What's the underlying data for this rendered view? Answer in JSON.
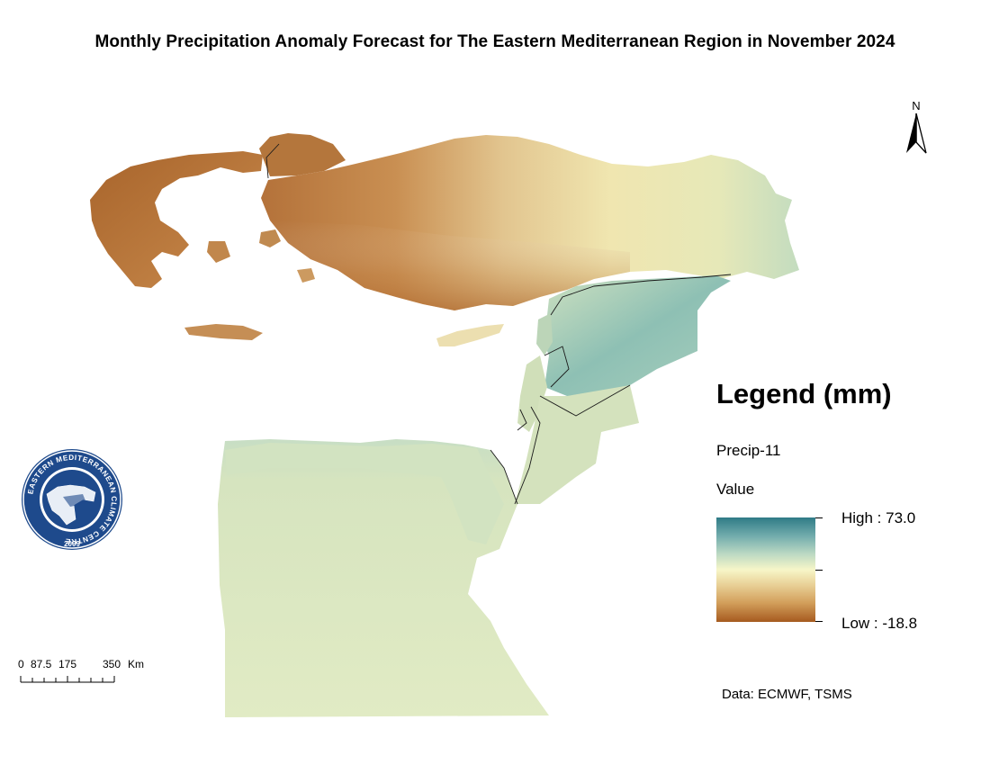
{
  "title": "Monthly Precipitation Anomaly Forecast for The Eastern Mediterranean Region in November 2024",
  "north_arrow": {
    "label": "N",
    "icon": "north-arrow-icon"
  },
  "legend": {
    "heading": "Legend (mm)",
    "layer": "Precip-11",
    "field": "Value",
    "high_label": "High : 73.0",
    "low_label": "Low : -18.8",
    "high_value": 73.0,
    "low_value": -18.8,
    "colors": [
      "#2f7b86",
      "#73adad",
      "#bcd9c3",
      "#f7f6c8",
      "#e8cf95",
      "#d29e5a",
      "#a65a1f"
    ]
  },
  "scale_bar": {
    "ticks": [
      "0",
      "87.5",
      "175",
      "350"
    ],
    "unit": "Km"
  },
  "logo": {
    "ring_text": "EASTERN MEDITERRANEAN CLIMATE CENTRE",
    "year": "2009",
    "ring_color": "#1e4a8c"
  },
  "source": "Data: ECMWF, TSMS"
}
